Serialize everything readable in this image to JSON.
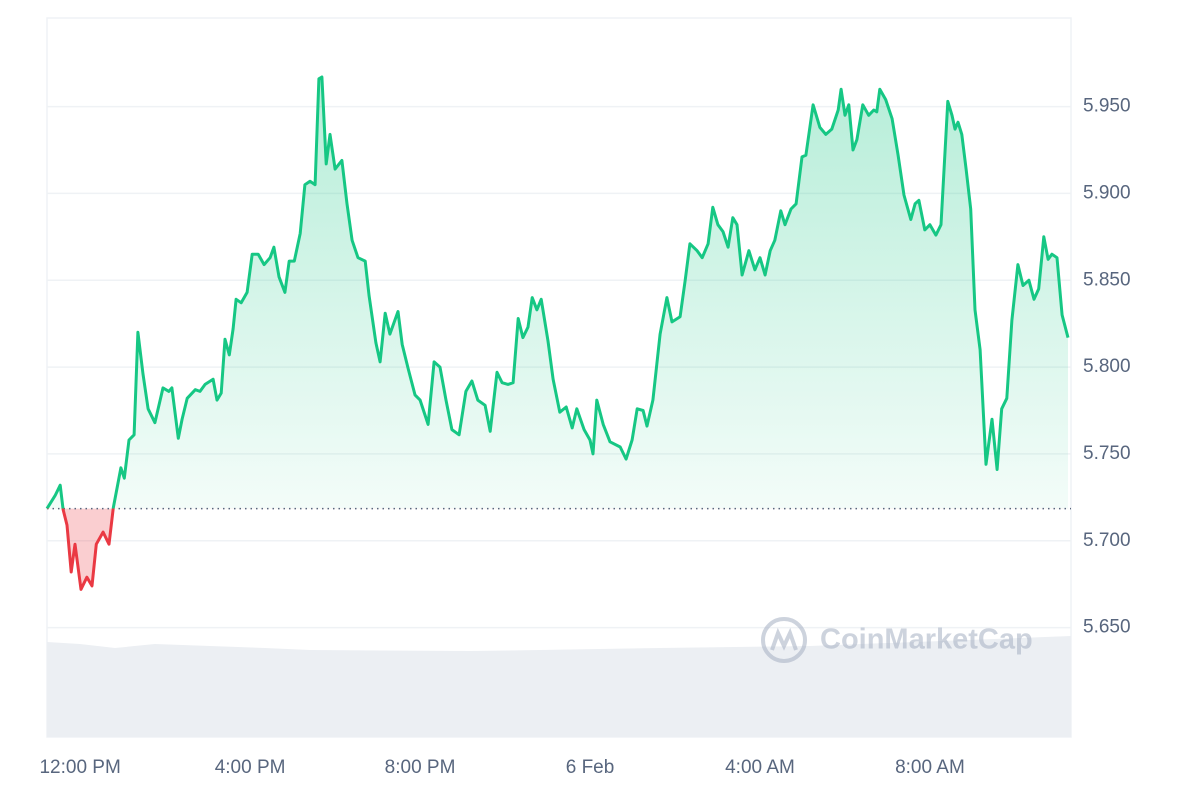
{
  "chart_data": {
    "type": "line",
    "color": "#16c784",
    "down_color": "#ea3943",
    "baseline": 5.7185,
    "grid": true,
    "watermark": "CoinMarketCap",
    "xlim": [
      -0.78,
      23.32
    ],
    "ylim": [
      5.587,
      6.001
    ],
    "xticks": [
      {
        "value": 0,
        "label": "12:00 PM"
      },
      {
        "value": 4,
        "label": "4:00 PM"
      },
      {
        "value": 8,
        "label": "8:00 PM"
      },
      {
        "value": 12,
        "label": "6 Feb"
      },
      {
        "value": 16,
        "label": "4:00 AM"
      },
      {
        "value": 20,
        "label": "8:00 AM"
      }
    ],
    "yticks": [
      {
        "value": 5.65,
        "label": "5.650"
      },
      {
        "value": 5.7,
        "label": "5.700"
      },
      {
        "value": 5.75,
        "label": "5.750"
      },
      {
        "value": 5.8,
        "label": "5.800"
      },
      {
        "value": 5.85,
        "label": "5.850"
      },
      {
        "value": 5.9,
        "label": "5.900"
      },
      {
        "value": 5.95,
        "label": "5.950"
      }
    ],
    "x": [
      -0.78,
      -0.59,
      -0.47,
      -0.4,
      -0.31,
      -0.21,
      -0.12,
      0.02,
      0.16,
      0.28,
      0.38,
      0.54,
      0.68,
      0.78,
      0.96,
      1.04,
      1.15,
      1.27,
      1.36,
      1.48,
      1.6,
      1.76,
      1.95,
      2.09,
      2.16,
      2.31,
      2.4,
      2.52,
      2.71,
      2.82,
      2.94,
      3.13,
      3.22,
      3.32,
      3.41,
      3.51,
      3.6,
      3.67,
      3.79,
      3.93,
      4.05,
      4.19,
      4.33,
      4.47,
      4.56,
      4.68,
      4.82,
      4.92,
      5.04,
      5.18,
      5.29,
      5.41,
      5.53,
      5.62,
      5.69,
      5.79,
      5.88,
      6.0,
      6.16,
      6.28,
      6.4,
      6.54,
      6.71,
      6.8,
      6.96,
      7.06,
      7.18,
      7.29,
      7.48,
      7.58,
      7.72,
      7.88,
      8.0,
      8.19,
      8.33,
      8.47,
      8.61,
      8.75,
      8.92,
      9.08,
      9.22,
      9.36,
      9.53,
      9.65,
      9.81,
      9.93,
      10.07,
      10.19,
      10.31,
      10.42,
      10.54,
      10.64,
      10.75,
      10.85,
      11.01,
      11.13,
      11.29,
      11.44,
      11.58,
      11.69,
      11.86,
      12.0,
      12.07,
      12.16,
      12.31,
      12.47,
      12.71,
      12.85,
      12.99,
      13.11,
      13.25,
      13.34,
      13.48,
      13.65,
      13.81,
      13.93,
      14.12,
      14.24,
      14.35,
      14.52,
      14.64,
      14.78,
      14.89,
      15.01,
      15.13,
      15.25,
      15.36,
      15.46,
      15.58,
      15.74,
      15.88,
      16.0,
      16.12,
      16.24,
      16.35,
      16.49,
      16.59,
      16.73,
      16.85,
      16.99,
      17.08,
      17.25,
      17.41,
      17.55,
      17.69,
      17.84,
      17.91,
      18.0,
      18.09,
      18.19,
      18.28,
      18.42,
      18.56,
      18.68,
      18.75,
      18.82,
      18.96,
      19.11,
      19.25,
      19.39,
      19.55,
      19.65,
      19.74,
      19.88,
      20.0,
      20.14,
      20.26,
      20.42,
      20.52,
      20.59,
      20.66,
      20.75,
      20.85,
      20.96,
      21.06,
      21.18,
      21.32,
      21.46,
      21.58,
      21.69,
      21.81,
      21.93,
      22.07,
      22.19,
      22.33,
      22.45,
      22.56,
      22.68,
      22.78,
      22.87,
      22.99,
      23.11,
      23.25
    ],
    "values": [
      5.7185,
      5.726,
      5.732,
      5.718,
      5.709,
      5.682,
      5.698,
      5.672,
      5.679,
      5.674,
      5.698,
      5.705,
      5.698,
      5.719,
      5.742,
      5.736,
      5.758,
      5.761,
      5.82,
      5.796,
      5.776,
      5.768,
      5.788,
      5.786,
      5.788,
      5.759,
      5.77,
      5.782,
      5.787,
      5.786,
      5.79,
      5.793,
      5.781,
      5.785,
      5.816,
      5.807,
      5.822,
      5.839,
      5.837,
      5.843,
      5.865,
      5.865,
      5.859,
      5.863,
      5.869,
      5.852,
      5.843,
      5.861,
      5.861,
      5.877,
      5.905,
      5.907,
      5.905,
      5.966,
      5.967,
      5.917,
      5.934,
      5.914,
      5.919,
      5.894,
      5.873,
      5.863,
      5.861,
      5.841,
      5.814,
      5.803,
      5.831,
      5.819,
      5.832,
      5.813,
      5.799,
      5.784,
      5.781,
      5.767,
      5.803,
      5.8,
      5.781,
      5.764,
      5.761,
      5.786,
      5.792,
      5.781,
      5.778,
      5.763,
      5.797,
      5.791,
      5.79,
      5.791,
      5.828,
      5.817,
      5.823,
      5.84,
      5.833,
      5.839,
      5.815,
      5.793,
      5.774,
      5.777,
      5.765,
      5.776,
      5.764,
      5.758,
      5.75,
      5.781,
      5.767,
      5.757,
      5.754,
      5.747,
      5.758,
      5.776,
      5.775,
      5.766,
      5.781,
      5.819,
      5.84,
      5.826,
      5.829,
      5.85,
      5.871,
      5.867,
      5.863,
      5.871,
      5.892,
      5.882,
      5.878,
      5.869,
      5.886,
      5.882,
      5.853,
      5.867,
      5.856,
      5.863,
      5.853,
      5.867,
      5.873,
      5.89,
      5.882,
      5.891,
      5.894,
      5.921,
      5.922,
      5.951,
      5.938,
      5.934,
      5.937,
      5.948,
      5.96,
      5.945,
      5.951,
      5.925,
      5.931,
      5.951,
      5.945,
      5.948,
      5.947,
      5.96,
      5.954,
      5.943,
      5.922,
      5.899,
      5.885,
      5.894,
      5.896,
      5.879,
      5.882,
      5.876,
      5.882,
      5.953,
      5.945,
      5.937,
      5.941,
      5.934,
      5.914,
      5.891,
      5.833,
      5.81,
      5.744,
      5.77,
      5.741,
      5.776,
      5.782,
      5.827,
      5.859,
      5.847,
      5.85,
      5.839,
      5.845,
      5.875,
      5.862,
      5.865,
      5.863,
      5.83,
      5.817
    ]
  }
}
